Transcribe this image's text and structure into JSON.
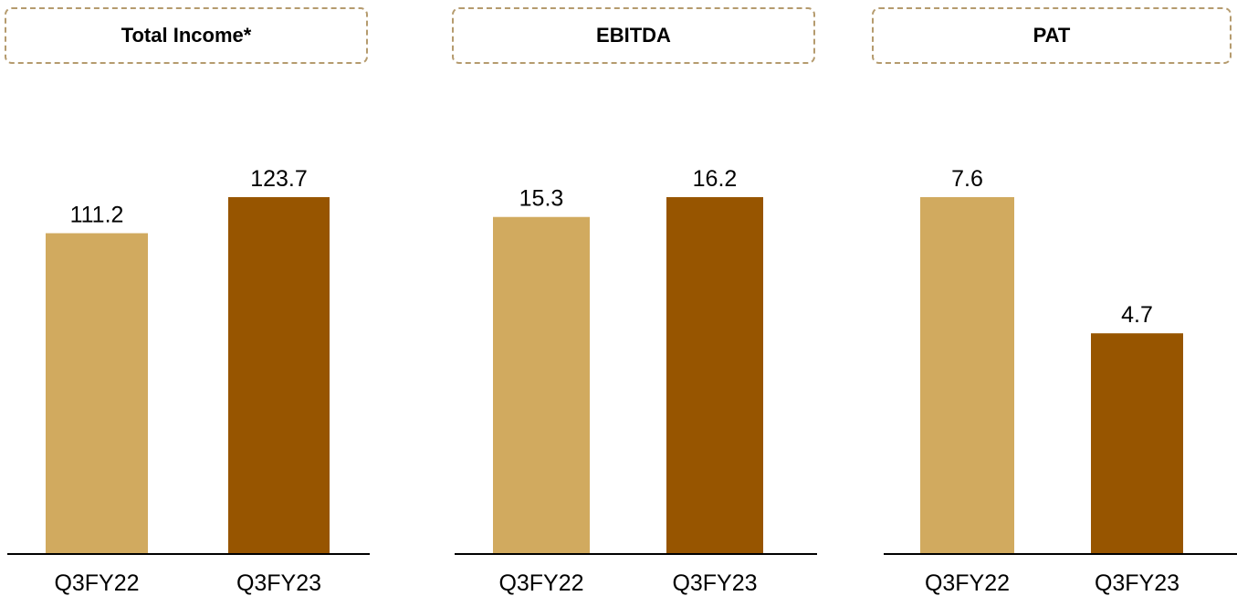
{
  "colors": {
    "prior_period": "#d1aa5f",
    "current_period": "#975500",
    "axis": "#000000",
    "title_border": "#b59b6e"
  },
  "chart_data": [
    {
      "type": "bar",
      "title": "Total Income*",
      "categories": [
        "Q3FY22",
        "Q3FY23"
      ],
      "values": [
        111.2,
        123.7
      ],
      "value_labels": [
        "111.2",
        "123.7"
      ]
    },
    {
      "type": "bar",
      "title": "EBITDA",
      "categories": [
        "Q3FY22",
        "Q3FY23"
      ],
      "values": [
        15.3,
        16.2
      ],
      "value_labels": [
        "15.3",
        "16.2"
      ]
    },
    {
      "type": "bar",
      "title": "PAT",
      "categories": [
        "Q3FY22",
        "Q3FY23"
      ],
      "values": [
        7.6,
        4.7
      ],
      "value_labels": [
        "7.6",
        "4.7"
      ]
    }
  ]
}
